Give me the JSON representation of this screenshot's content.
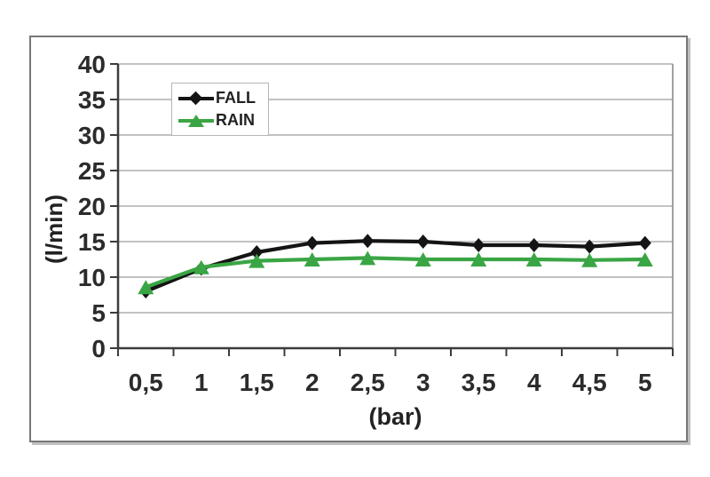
{
  "chart_data": {
    "type": "line",
    "title": "",
    "xlabel": "(bar)",
    "ylabel": "(l/min)",
    "x": [
      0.5,
      1,
      1.5,
      2,
      2.5,
      3,
      3.5,
      4,
      4.5,
      5
    ],
    "x_tick_labels": [
      "0,5",
      "1",
      "1,5",
      "2",
      "2,5",
      "3",
      "3,5",
      "4",
      "4,5",
      "5"
    ],
    "ylim": [
      0,
      40
    ],
    "y_tick_step": 5,
    "y_tick_labels": [
      "0",
      "5",
      "10",
      "15",
      "20",
      "25",
      "30",
      "35",
      "40"
    ],
    "grid": "horizontal",
    "legend_position": "top-left-inside",
    "series": [
      {
        "name": "FALL",
        "marker": "diamond",
        "color": "#141414",
        "values": [
          8.0,
          11.2,
          13.5,
          14.8,
          15.1,
          15.0,
          14.5,
          14.5,
          14.3,
          14.8
        ]
      },
      {
        "name": "RAIN",
        "marker": "triangle",
        "color": "#3AA544",
        "values": [
          8.6,
          11.4,
          12.3,
          12.5,
          12.7,
          12.5,
          12.5,
          12.5,
          12.4,
          12.5
        ]
      }
    ],
    "colors": {
      "plot_background": "#ffffff",
      "gridline": "#848484",
      "axis": "#3c3c3c",
      "tick_text": "#2b2b2b",
      "chart_border": "#777777",
      "legend_border": "#b5b5b5"
    }
  }
}
